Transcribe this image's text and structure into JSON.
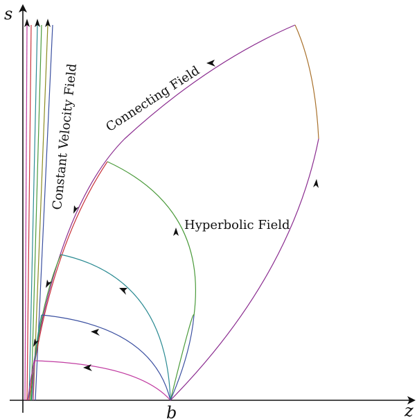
{
  "axes": {
    "x_label": "z",
    "y_label": "s",
    "x_tick": "b"
  },
  "labels": {
    "constant_velocity": "Constant Velocity Field",
    "connecting": "Connecting Field",
    "hyperbolic": "Hyperbolic Field"
  },
  "colors": {
    "purple": "#8a2b8f",
    "magenta": "#c03aa0",
    "blue": "#3a4fa0",
    "teal": "#2a8a92",
    "green": "#4a9a3a",
    "brown": "#a8702a",
    "red": "#c8323a",
    "olive": "#8a8a20",
    "axis": "#111111"
  }
}
